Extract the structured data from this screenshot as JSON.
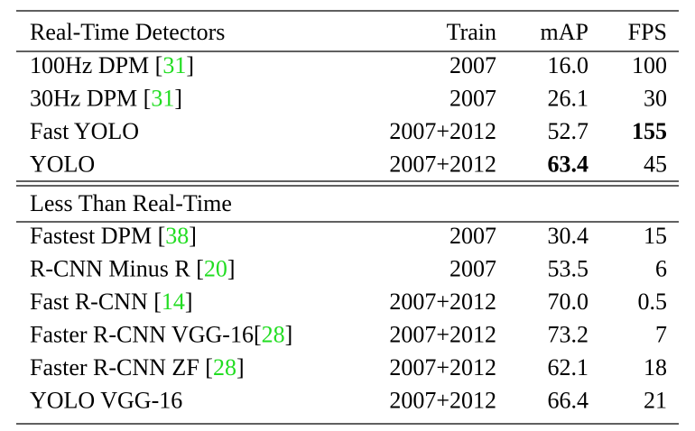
{
  "table": {
    "header": [
      "Real-Time Detectors",
      "Train",
      "mAP",
      "FPS"
    ],
    "sections": [
      {
        "rows": [
          {
            "cells": [
              "100Hz DPM [31]",
              "2007",
              "16.0",
              "100"
            ]
          },
          {
            "cells": [
              "30Hz DPM [31]",
              "2007",
              "26.1",
              "30"
            ]
          },
          {
            "cells": [
              "Fast YOLO",
              "2007+2012",
              "52.7",
              "155"
            ],
            "bold": [
              3
            ]
          },
          {
            "cells": [
              "YOLO",
              "2007+2012",
              "63.4",
              "45"
            ],
            "bold": [
              2
            ]
          }
        ]
      },
      {
        "title": "Less Than Real-Time",
        "rows": [
          {
            "cells": [
              "Fastest DPM [38]",
              "2007",
              "30.4",
              "15"
            ]
          },
          {
            "cells": [
              "R-CNN Minus R [20]",
              "2007",
              "53.5",
              "6"
            ]
          },
          {
            "cells": [
              "Fast R-CNN [14]",
              "2007+2012",
              "70.0",
              "0.5"
            ]
          },
          {
            "cells": [
              "Faster R-CNN VGG-16[28]",
              "2007+2012",
              "73.2",
              "7"
            ]
          },
          {
            "cells": [
              "Faster R-CNN ZF [28]",
              "2007+2012",
              "62.1",
              "18"
            ]
          },
          {
            "cells": [
              "YOLO VGG-16",
              "2007+2012",
              "66.4",
              "21"
            ]
          }
        ]
      }
    ],
    "citation_color": "#22dd22"
  }
}
